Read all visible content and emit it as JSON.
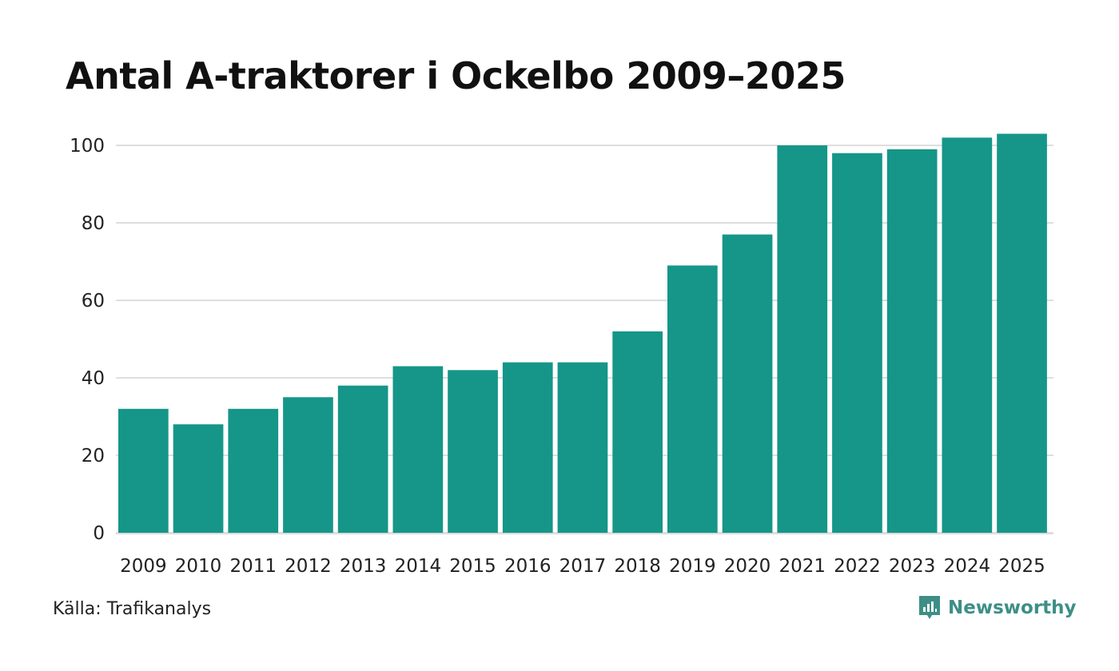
{
  "colors": {
    "bar": "#159688",
    "grid": "#dedede",
    "brand": "#3d8f86"
  },
  "chart_data": {
    "type": "bar",
    "title": "Antal A-traktorer i Ockelbo 2009–2025",
    "xlabel": "",
    "ylabel": "",
    "categories": [
      "2009",
      "2010",
      "2011",
      "2012",
      "2013",
      "2014",
      "2015",
      "2016",
      "2017",
      "2018",
      "2019",
      "2020",
      "2021",
      "2022",
      "2023",
      "2024",
      "2025"
    ],
    "values": [
      32,
      28,
      32,
      35,
      38,
      43,
      42,
      44,
      44,
      52,
      69,
      77,
      100,
      98,
      99,
      102,
      103
    ],
    "ylim": [
      0,
      100
    ],
    "yticks": [
      0,
      20,
      40,
      60,
      80,
      100
    ],
    "grid": true
  },
  "footer": {
    "source": "Källa: Trafikanalys",
    "brand": "Newsworthy",
    "brand_icon": "newsworthy-logo-icon"
  }
}
